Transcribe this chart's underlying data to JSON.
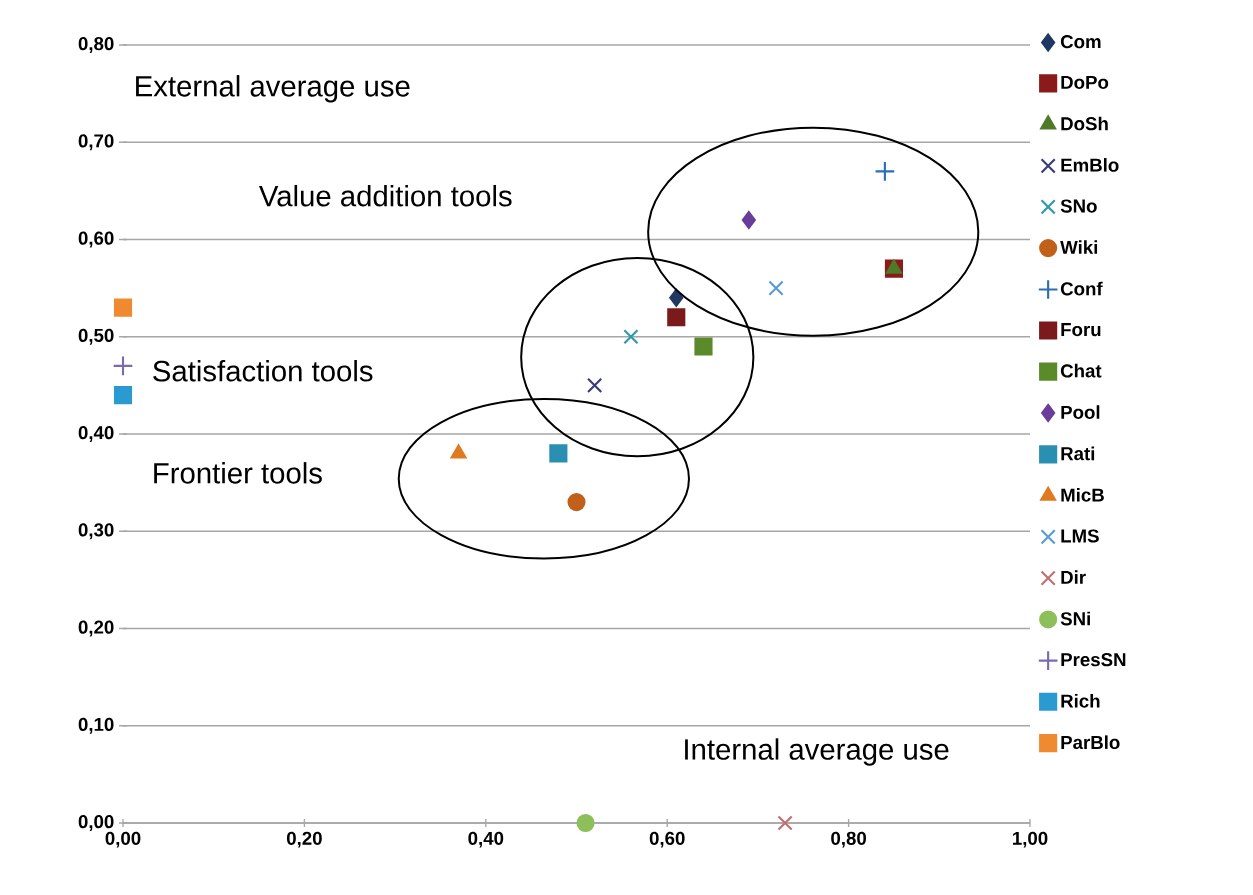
{
  "chart_data": {
    "type": "scatter",
    "xlim": [
      0,
      1.0
    ],
    "ylim": [
      0,
      0.8
    ],
    "xticks": [
      {
        "value": 0,
        "label": "0,00"
      },
      {
        "value": 0.2,
        "label": "0,20"
      },
      {
        "value": 0.4,
        "label": "0,40"
      },
      {
        "value": 0.6,
        "label": "0,60"
      },
      {
        "value": 0.8,
        "label": "0,80"
      },
      {
        "value": 1.0,
        "label": "1,00"
      }
    ],
    "yticks": [
      {
        "value": 0,
        "label": "0,00"
      },
      {
        "value": 0.1,
        "label": "0,10"
      },
      {
        "value": 0.2,
        "label": "0,20"
      },
      {
        "value": 0.3,
        "label": "0,30"
      },
      {
        "value": 0.4,
        "label": "0,40"
      },
      {
        "value": 0.5,
        "label": "0,50"
      },
      {
        "value": 0.6,
        "label": "0,60"
      },
      {
        "value": 0.7,
        "label": "0,70"
      },
      {
        "value": 0.8,
        "label": "0,80"
      }
    ],
    "grid": "y",
    "legend": "right",
    "annotations": [
      "External average use",
      "Value addition tools",
      "Satisfaction tools",
      "Frontier tools",
      "Internal average use"
    ],
    "series": [
      {
        "name": "Com",
        "color": "#1f3864",
        "marker": "diamond",
        "x": [
          0.61
        ],
        "values": [
          0.54
        ]
      },
      {
        "name": "DoPo",
        "color": "#8b1a1a",
        "marker": "square",
        "x": [
          0.85
        ],
        "values": [
          0.57
        ]
      },
      {
        "name": "DoSh",
        "color": "#4f7a28",
        "marker": "triangle",
        "x": [
          0.85
        ],
        "values": [
          0.57
        ]
      },
      {
        "name": "EmBlo",
        "color": "#3b3b7a",
        "marker": "cross",
        "x": [
          0.52
        ],
        "values": [
          0.45
        ]
      },
      {
        "name": "SNo",
        "color": "#2e9aa8",
        "marker": "cross",
        "x": [
          0.56
        ],
        "values": [
          0.5
        ]
      },
      {
        "name": "Wiki",
        "color": "#c0601a",
        "marker": "circle",
        "x": [
          0.5
        ],
        "values": [
          0.33
        ]
      },
      {
        "name": "Conf",
        "color": "#2e6db4",
        "marker": "plus",
        "x": [
          0.84
        ],
        "values": [
          0.67
        ]
      },
      {
        "name": "Foru",
        "color": "#7a1a1a",
        "marker": "square",
        "x": [
          0.61
        ],
        "values": [
          0.52
        ]
      },
      {
        "name": "Chat",
        "color": "#5a8a2a",
        "marker": "square",
        "x": [
          0.64
        ],
        "values": [
          0.49
        ]
      },
      {
        "name": "Pool",
        "color": "#6a3d9a",
        "marker": "diamond",
        "x": [
          0.69
        ],
        "values": [
          0.62
        ]
      },
      {
        "name": "Rati",
        "color": "#2a8fb0",
        "marker": "square",
        "x": [
          0.48
        ],
        "values": [
          0.38
        ]
      },
      {
        "name": "MicB",
        "color": "#e07a20",
        "marker": "triangle",
        "x": [
          0.37
        ],
        "values": [
          0.38
        ]
      },
      {
        "name": "LMS",
        "color": "#5b9bd5",
        "marker": "cross",
        "x": [
          0.72
        ],
        "values": [
          0.55
        ]
      },
      {
        "name": "Dir",
        "color": "#c07070",
        "marker": "cross",
        "x": [
          0.73
        ],
        "values": [
          0.0
        ]
      },
      {
        "name": "SNi",
        "color": "#8dbf5a",
        "marker": "circle",
        "x": [
          0.51
        ],
        "values": [
          0.0
        ]
      },
      {
        "name": "PresSN",
        "color": "#7a6ab0",
        "marker": "plus",
        "x": [
          0.0
        ],
        "values": [
          0.47
        ]
      },
      {
        "name": "Rich",
        "color": "#2a9ad0",
        "marker": "square",
        "x": [
          0.0
        ],
        "values": [
          0.44
        ]
      },
      {
        "name": "ParBlo",
        "color": "#f08a30",
        "marker": "square",
        "x": [
          0.0
        ],
        "values": [
          0.53
        ]
      }
    ]
  }
}
